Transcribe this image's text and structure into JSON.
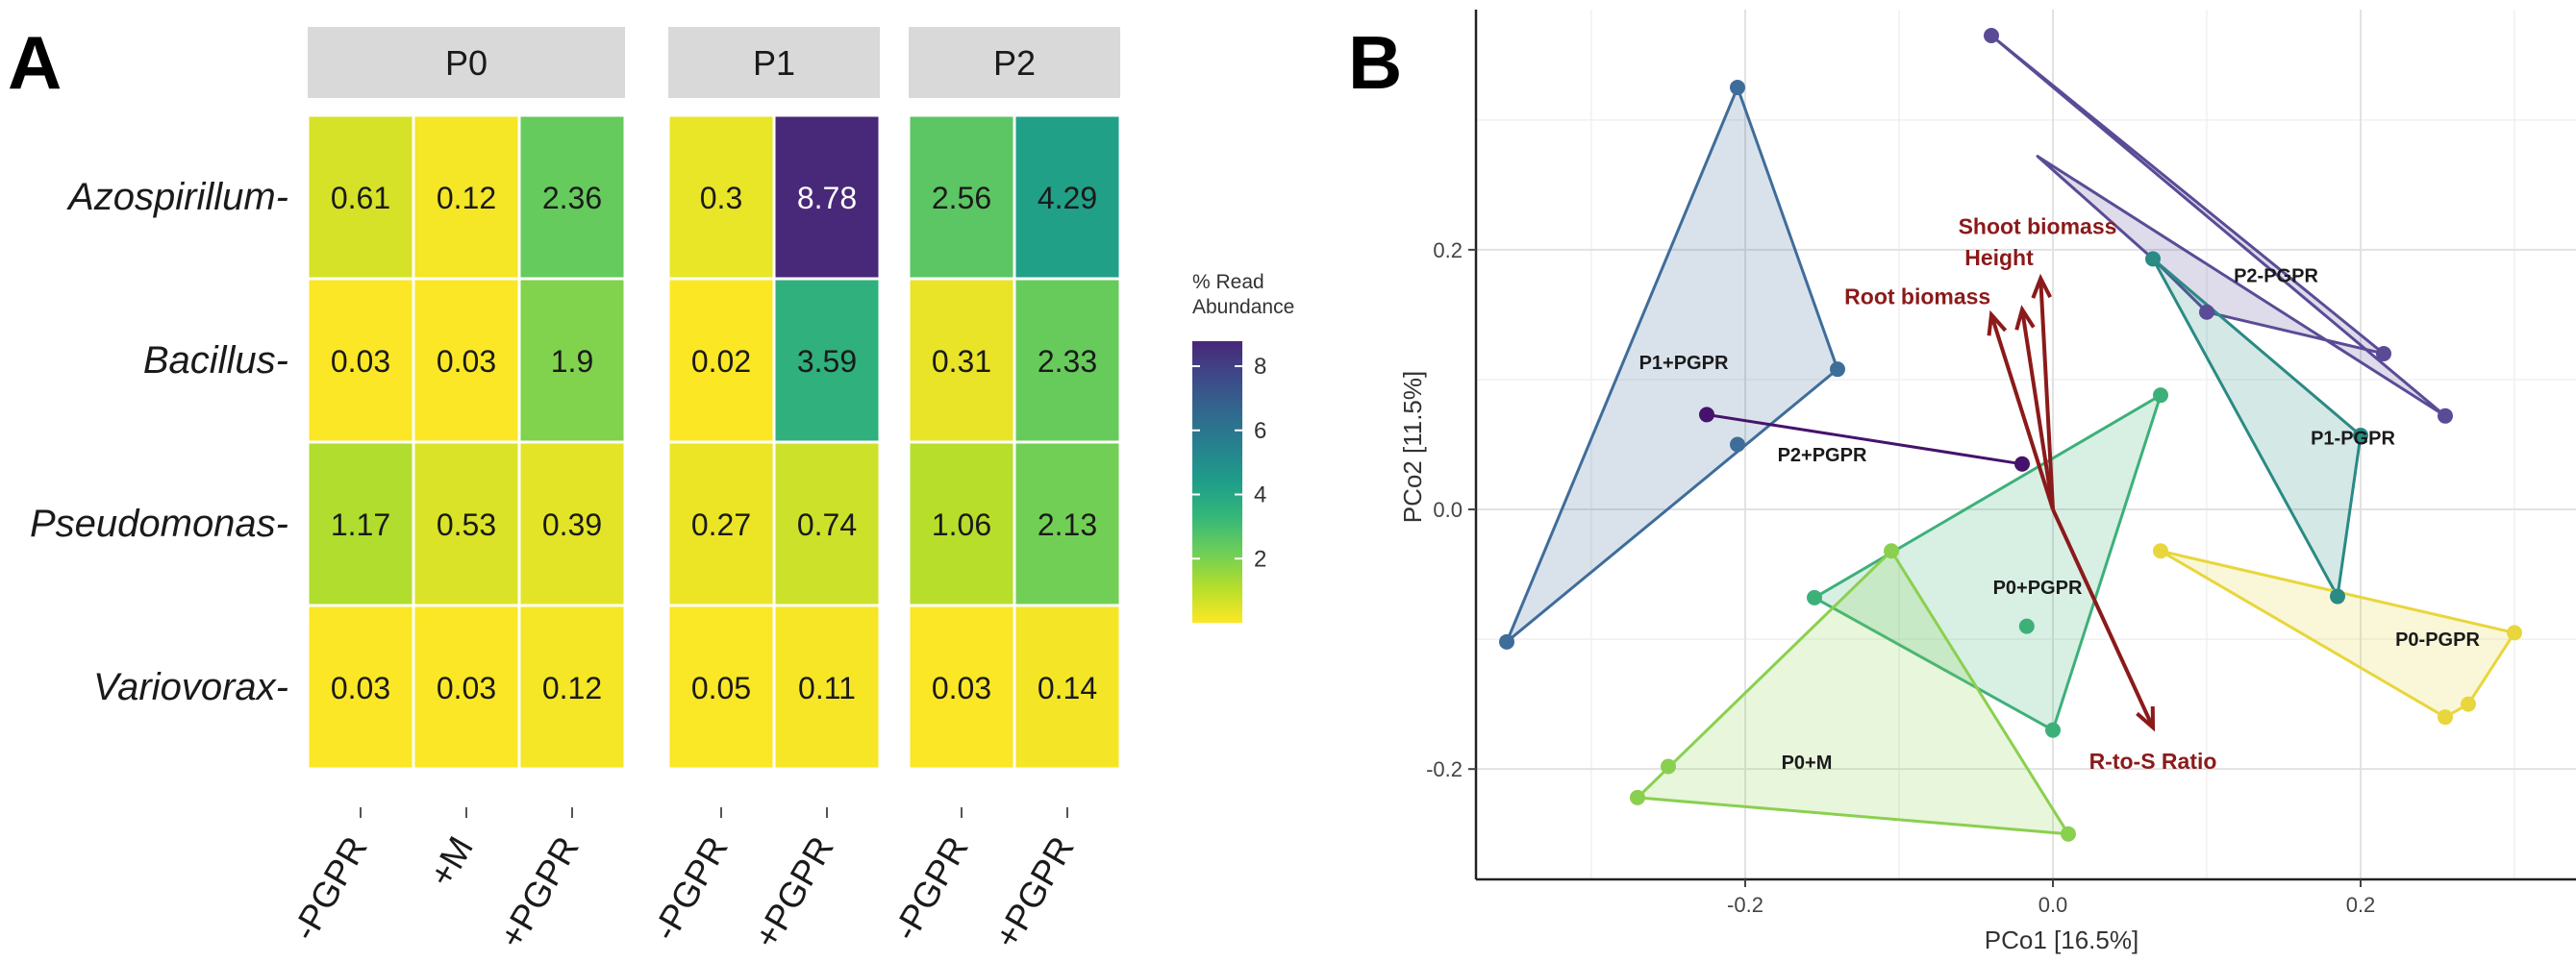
{
  "panel_labels": [
    "A",
    "B"
  ],
  "chart_data": [
    {
      "type": "heatmap",
      "panel": "A",
      "facets": [
        {
          "title": "P0",
          "columns": [
            "-PGPR",
            "+M",
            "+PGPR"
          ]
        },
        {
          "title": "P1",
          "columns": [
            "-PGPR",
            "+PGPR"
          ]
        },
        {
          "title": "P2",
          "columns": [
            "-PGPR",
            "+PGPR"
          ]
        }
      ],
      "rows": [
        "Azospirillum",
        "Bacillus",
        "Pseudomonas",
        "Variovorax"
      ],
      "values": [
        [
          [
            0.61,
            0.12,
            2.36
          ],
          [
            0.3,
            8.78
          ],
          [
            2.56,
            4.29
          ]
        ],
        [
          [
            0.03,
            0.03,
            1.9
          ],
          [
            0.02,
            3.59
          ],
          [
            0.31,
            2.33
          ]
        ],
        [
          [
            1.17,
            0.53,
            0.39
          ],
          [
            0.27,
            0.74
          ],
          [
            1.06,
            2.13
          ]
        ],
        [
          [
            0.03,
            0.03,
            0.12
          ],
          [
            0.05,
            0.11
          ],
          [
            0.03,
            0.14
          ]
        ]
      ],
      "labels": [
        [
          [
            "0.61",
            "0.12",
            "2.36"
          ],
          [
            "0.3",
            "8.78"
          ],
          [
            "2.56",
            "4.29"
          ]
        ],
        [
          [
            "0.03",
            "0.03",
            "1.9"
          ],
          [
            "0.02",
            "3.59"
          ],
          [
            "0.31",
            "2.33"
          ]
        ],
        [
          [
            "1.17",
            "0.53",
            "0.39"
          ],
          [
            "0.27",
            "0.74"
          ],
          [
            "1.06",
            "2.13"
          ]
        ],
        [
          [
            "0.03",
            "0.03",
            "0.12"
          ],
          [
            "0.05",
            "0.11"
          ],
          [
            "0.03",
            "0.14"
          ]
        ]
      ],
      "colorbar": {
        "title_lines": [
          "% Read",
          "Abundance"
        ],
        "range": [
          0,
          8.78
        ],
        "ticks": [
          2,
          4,
          6,
          8
        ],
        "tick_labels": [
          "2",
          "4",
          "6",
          "8"
        ],
        "colormap": "viridis-reversed"
      }
    },
    {
      "type": "scatter",
      "panel": "B",
      "xlabel": "PCo1 [16.5%]",
      "ylabel": "PCo2 [11.5%]",
      "xlim": [
        -0.375,
        0.34
      ],
      "ylim": [
        -0.285,
        0.385
      ],
      "xticks": [
        -0.2,
        0.0,
        0.2
      ],
      "xtick_labels": [
        "-0.2",
        "0.0",
        "0.2"
      ],
      "yticks": [
        -0.2,
        0.0,
        0.2
      ],
      "ytick_labels": [
        "-0.2",
        "0.0",
        "0.2"
      ],
      "groups": [
        {
          "name": "P2-PGPR",
          "color": "#5B4B96",
          "label_at": [
            0.145,
            0.175
          ],
          "hull": [
            [
              -0.04,
              0.365
            ],
            [
              0.255,
              0.072
            ],
            [
              -0.01,
              0.272
            ],
            [
              0.065,
              0.193
            ],
            [
              0.1,
              0.152
            ],
            [
              0.215,
              0.12
            ]
          ],
          "points": [
            [
              -0.04,
              0.365
            ],
            [
              0.1,
              0.152
            ],
            [
              0.215,
              0.12
            ],
            [
              0.255,
              0.072
            ]
          ]
        },
        {
          "name": "P1-PGPR",
          "color": "#2A8A84",
          "label_at": [
            0.195,
            0.05
          ],
          "hull": [
            [
              0.065,
              0.193
            ],
            [
              0.2,
              0.057
            ],
            [
              0.185,
              -0.067
            ]
          ],
          "points": [
            [
              0.065,
              0.193
            ],
            [
              0.2,
              0.057
            ],
            [
              0.185,
              -0.067
            ]
          ]
        },
        {
          "name": "P1+PGPR",
          "color": "#3F6D9A",
          "label_at": [
            -0.24,
            0.108
          ],
          "hull": [
            [
              -0.205,
              0.325
            ],
            [
              -0.14,
              0.108
            ],
            [
              -0.355,
              -0.102
            ]
          ],
          "points": [
            [
              -0.205,
              0.325
            ],
            [
              -0.14,
              0.108
            ],
            [
              -0.205,
              0.05
            ],
            [
              -0.355,
              -0.102
            ]
          ]
        },
        {
          "name": "P2+PGPR",
          "color": "#45136B",
          "label_at": [
            -0.15,
            0.037
          ],
          "hull": [
            [
              -0.225,
              0.073
            ],
            [
              -0.02,
              0.035
            ]
          ],
          "points": [
            [
              -0.225,
              0.073
            ],
            [
              -0.02,
              0.035
            ]
          ]
        },
        {
          "name": "P0+PGPR",
          "color": "#3DB07A",
          "label_at": [
            -0.01,
            -0.065
          ],
          "hull": [
            [
              0.07,
              0.088
            ],
            [
              0.0,
              -0.17
            ],
            [
              -0.155,
              -0.068
            ]
          ],
          "points": [
            [
              0.07,
              0.088
            ],
            [
              -0.155,
              -0.068
            ],
            [
              -0.017,
              -0.09
            ],
            [
              0.0,
              -0.17
            ]
          ]
        },
        {
          "name": "P0+M",
          "color": "#8AD04F",
          "label_at": [
            -0.16,
            -0.2
          ],
          "hull": [
            [
              -0.105,
              -0.032
            ],
            [
              0.01,
              -0.25
            ],
            [
              -0.27,
              -0.222
            ]
          ],
          "points": [
            [
              -0.105,
              -0.032
            ],
            [
              0.01,
              -0.25
            ],
            [
              -0.27,
              -0.222
            ],
            [
              -0.25,
              -0.198
            ]
          ]
        },
        {
          "name": "P0-PGPR",
          "color": "#E8D63C",
          "label_at": [
            0.25,
            -0.105
          ],
          "hull": [
            [
              0.07,
              -0.032
            ],
            [
              0.3,
              -0.095
            ],
            [
              0.27,
              -0.15
            ],
            [
              0.255,
              -0.16
            ]
          ],
          "points": [
            [
              0.07,
              -0.032
            ],
            [
              0.3,
              -0.095
            ],
            [
              0.27,
              -0.15
            ],
            [
              0.255,
              -0.16
            ]
          ]
        }
      ],
      "vectors": {
        "color": "#8B1A1A",
        "origin": [
          0.0,
          0.0
        ],
        "items": [
          {
            "name": "Shoot biomass",
            "end": [
              -0.008,
              0.178
            ],
            "label_at": [
              -0.01,
              0.212
            ]
          },
          {
            "name": "Height",
            "end": [
              -0.02,
              0.154
            ],
            "label_at": [
              -0.035,
              0.188
            ]
          },
          {
            "name": "Root biomass",
            "end": [
              -0.04,
              0.15
            ],
            "label_at": [
              -0.088,
              0.158
            ]
          },
          {
            "name": "R-to-S Ratio",
            "end": [
              0.065,
              -0.168
            ],
            "label_at": [
              0.065,
              -0.2
            ]
          }
        ]
      }
    }
  ]
}
